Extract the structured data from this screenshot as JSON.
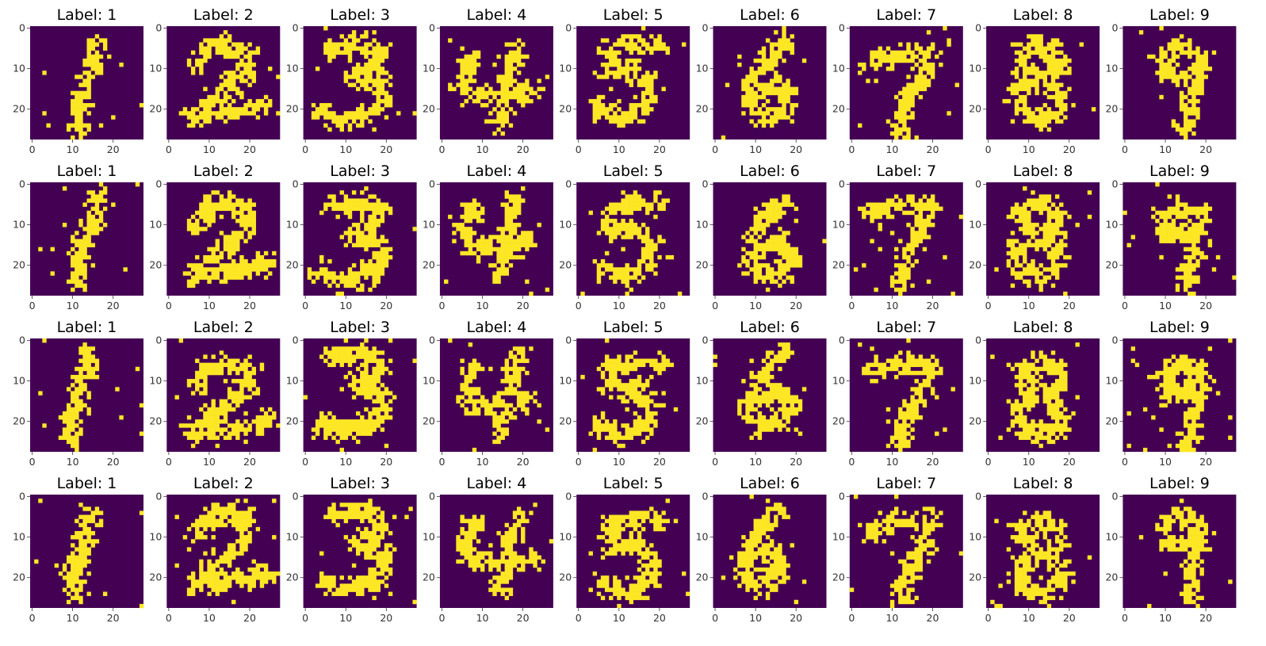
{
  "chart_data": {
    "type": "heatmap",
    "description_grid": {
      "rows": 4,
      "cols": 9
    },
    "title_prefix": "Label: ",
    "labels": [
      "1",
      "2",
      "3",
      "4",
      "5",
      "6",
      "7",
      "8",
      "9"
    ],
    "image_size": [
      28,
      28
    ],
    "axis_ticks": [
      "0",
      "10",
      "20"
    ],
    "xlim": [
      -0.5,
      27.5
    ],
    "ylim": [
      27.5,
      -0.5
    ],
    "grid": false,
    "colors": {
      "background": "#440154",
      "foreground": "#fde725"
    }
  }
}
